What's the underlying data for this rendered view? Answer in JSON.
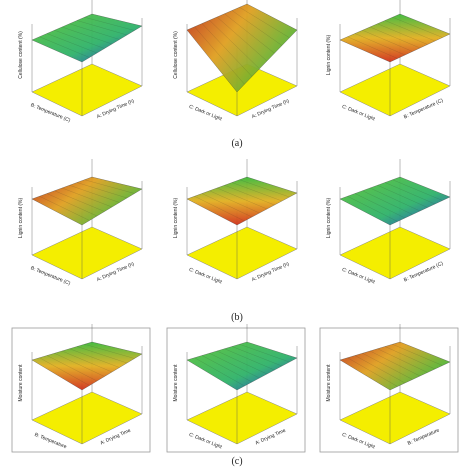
{
  "rows": [
    {
      "caption": "(a)",
      "panels": [
        {
          "z_label": "Cellulose content (%)",
          "x_label": "B: Temperature (C)",
          "y_label": "A: Drying Time (h)"
        },
        {
          "z_label": "Cellulose content (%)",
          "x_label": "C: Dark or Light",
          "y_label": "A: Drying Time (h)"
        },
        {
          "z_label": "Lignin content (%)",
          "x_label": "C: Dark or Light",
          "y_label": "B: Temperature (C)"
        }
      ]
    },
    {
      "caption": "(b)",
      "panels": [
        {
          "z_label": "Lignin content (%)",
          "x_label": "B: Temperature (C)",
          "y_label": "A: Drying Time (h)"
        },
        {
          "z_label": "Lignin content (%)",
          "x_label": "C: Dark or Light",
          "y_label": "A: Drying Time (h)"
        },
        {
          "z_label": "Lignin content (%)",
          "x_label": "C: Dark or Light",
          "y_label": "B: Temperature (C)"
        }
      ]
    },
    {
      "caption": "(c)",
      "panels": [
        {
          "z_label": "Moisture content",
          "x_label": "B: Temperature",
          "y_label": "A: Drying Time"
        },
        {
          "z_label": "Moisture content",
          "x_label": "C: Dark or Light",
          "y_label": "A: Drying Time"
        },
        {
          "z_label": "Moisture content",
          "x_label": "C: Dark or Light",
          "y_label": "B: Temperature"
        }
      ]
    }
  ]
}
